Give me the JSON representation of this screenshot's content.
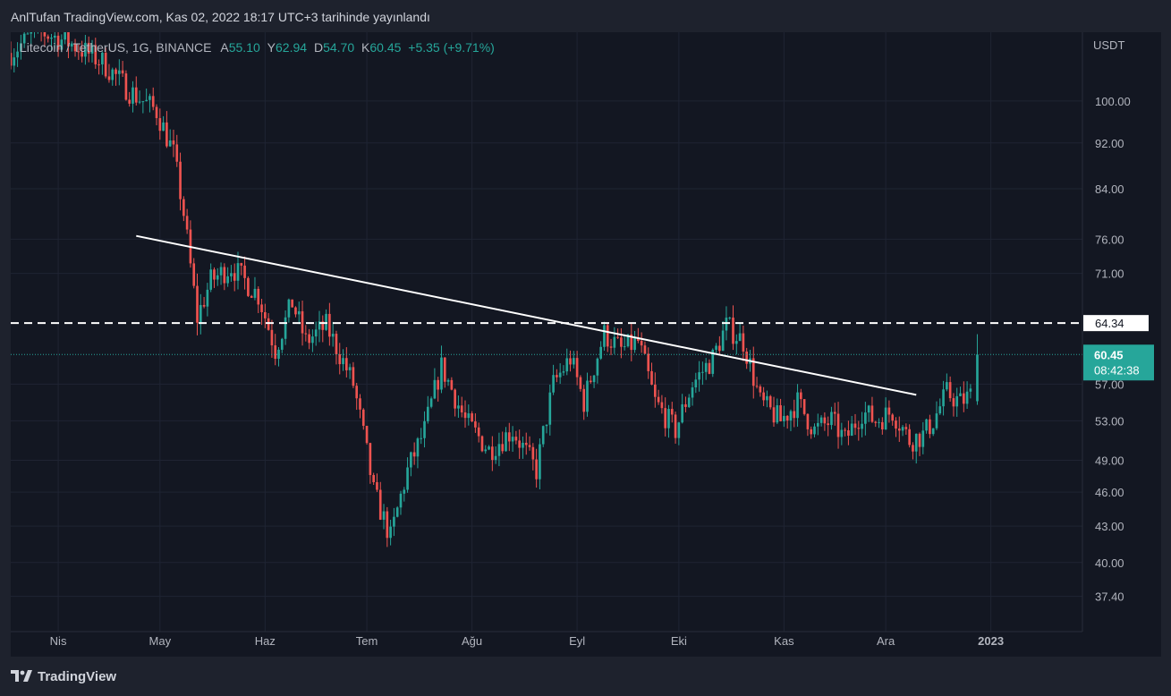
{
  "header": {
    "publish_text": "AnlTufan TradingView.com, Kas 02, 2022 18:17 UTC+3 tarihinde yayınlandı"
  },
  "legend": {
    "symbol": "Litecoin / TetherUS, 1G, BINANCE",
    "open_label": "A",
    "open": "55.10",
    "high_label": "Y",
    "high": "62.94",
    "low_label": "D",
    "low": "54.70",
    "close_label": "K",
    "close": "60.45",
    "change": "+5.35 (+9.71%)"
  },
  "footer": {
    "brand": "TradingView"
  },
  "colors": {
    "up": "#26a69a",
    "down": "#ef5350",
    "background": "#131722",
    "frame": "#1e222d",
    "grid": "#1f2433",
    "axis_text": "#b2b5be",
    "trendline": "#ffffff"
  },
  "chart_data": {
    "type": "candlestick",
    "currency": "USDT",
    "y_scale": "log",
    "ylim": [
      35.5,
      113
    ],
    "y_ticks": [
      "100.00",
      "92.00",
      "84.00",
      "76.00",
      "71.00",
      "64.34",
      "60.45",
      "57.00",
      "53.00",
      "49.00",
      "46.00",
      "43.00",
      "40.00",
      "37.40"
    ],
    "x_labels": [
      {
        "label": "Nis",
        "date": "2022-04-01"
      },
      {
        "label": "May",
        "date": "2022-05-01"
      },
      {
        "label": "Haz",
        "date": "2022-06-01"
      },
      {
        "label": "Tem",
        "date": "2022-07-01"
      },
      {
        "label": "Ağu",
        "date": "2022-08-01"
      },
      {
        "label": "Eyl",
        "date": "2022-09-01"
      },
      {
        "label": "Eki",
        "date": "2022-10-01"
      },
      {
        "label": "Kas",
        "date": "2022-11-01"
      },
      {
        "label": "Ara",
        "date": "2022-12-01"
      },
      {
        "label": "2023",
        "date": "2023-01-01"
      }
    ],
    "x_range": [
      "2022-03-18",
      "2023-01-28"
    ],
    "horizontal_line": {
      "value": 64.34,
      "label": "64.34",
      "style": "dashed"
    },
    "last_price": {
      "value": 60.45,
      "label": "60.45",
      "countdown": "08:42:38"
    },
    "trendline": {
      "start": {
        "date": "2022-04-24",
        "value": 76.5
      },
      "end": {
        "date": "2022-12-10",
        "value": 55.8
      }
    },
    "anchors": [
      {
        "date": "2022-03-18",
        "value": 110
      },
      {
        "date": "2022-03-26",
        "value": 115
      },
      {
        "date": "2022-04-05",
        "value": 112
      },
      {
        "date": "2022-04-14",
        "value": 108
      },
      {
        "date": "2022-04-22",
        "value": 102
      },
      {
        "date": "2022-04-30",
        "value": 98
      },
      {
        "date": "2022-05-05",
        "value": 90
      },
      {
        "date": "2022-05-08",
        "value": 80
      },
      {
        "date": "2022-05-10",
        "value": 72
      },
      {
        "date": "2022-05-12",
        "value": 65
      },
      {
        "date": "2022-05-16",
        "value": 70
      },
      {
        "date": "2022-05-22",
        "value": 72
      },
      {
        "date": "2022-05-30",
        "value": 68
      },
      {
        "date": "2022-06-04",
        "value": 61
      },
      {
        "date": "2022-06-09",
        "value": 67
      },
      {
        "date": "2022-06-13",
        "value": 62
      },
      {
        "date": "2022-06-19",
        "value": 64
      },
      {
        "date": "2022-06-27",
        "value": 57
      },
      {
        "date": "2022-07-03",
        "value": 46
      },
      {
        "date": "2022-07-08",
        "value": 42
      },
      {
        "date": "2022-07-13",
        "value": 48
      },
      {
        "date": "2022-07-18",
        "value": 52
      },
      {
        "date": "2022-07-23",
        "value": 59
      },
      {
        "date": "2022-07-30",
        "value": 53
      },
      {
        "date": "2022-08-06",
        "value": 50
      },
      {
        "date": "2022-08-13",
        "value": 52
      },
      {
        "date": "2022-08-20",
        "value": 48
      },
      {
        "date": "2022-08-25",
        "value": 57
      },
      {
        "date": "2022-08-30",
        "value": 60
      },
      {
        "date": "2022-09-03",
        "value": 55
      },
      {
        "date": "2022-09-09",
        "value": 63
      },
      {
        "date": "2022-09-14",
        "value": 61
      },
      {
        "date": "2022-09-19",
        "value": 62
      },
      {
        "date": "2022-09-24",
        "value": 55
      },
      {
        "date": "2022-09-30",
        "value": 52
      },
      {
        "date": "2022-10-05",
        "value": 57
      },
      {
        "date": "2022-10-11",
        "value": 60
      },
      {
        "date": "2022-10-15",
        "value": 64
      },
      {
        "date": "2022-10-20",
        "value": 62
      },
      {
        "date": "2022-10-25",
        "value": 55
      },
      {
        "date": "2022-10-31",
        "value": 53
      },
      {
        "date": "2022-11-05",
        "value": 55
      },
      {
        "date": "2022-11-10",
        "value": 52
      },
      {
        "date": "2022-11-15",
        "value": 53
      },
      {
        "date": "2022-11-19",
        "value": 51
      },
      {
        "date": "2022-11-24",
        "value": 54
      },
      {
        "date": "2022-11-28",
        "value": 53
      },
      {
        "date": "2022-12-03",
        "value": 54
      },
      {
        "date": "2022-12-08",
        "value": 51
      },
      {
        "date": "2022-12-12",
        "value": 51.5
      },
      {
        "date": "2022-12-15",
        "value": 53
      },
      {
        "date": "2022-12-19",
        "value": 56
      },
      {
        "date": "2022-12-23",
        "value": 55
      },
      {
        "date": "2022-12-27",
        "value": 56
      }
    ],
    "last_candle": {
      "date": "2022-12-28",
      "open": 55.1,
      "high": 62.94,
      "low": 54.7,
      "close": 60.45
    }
  }
}
